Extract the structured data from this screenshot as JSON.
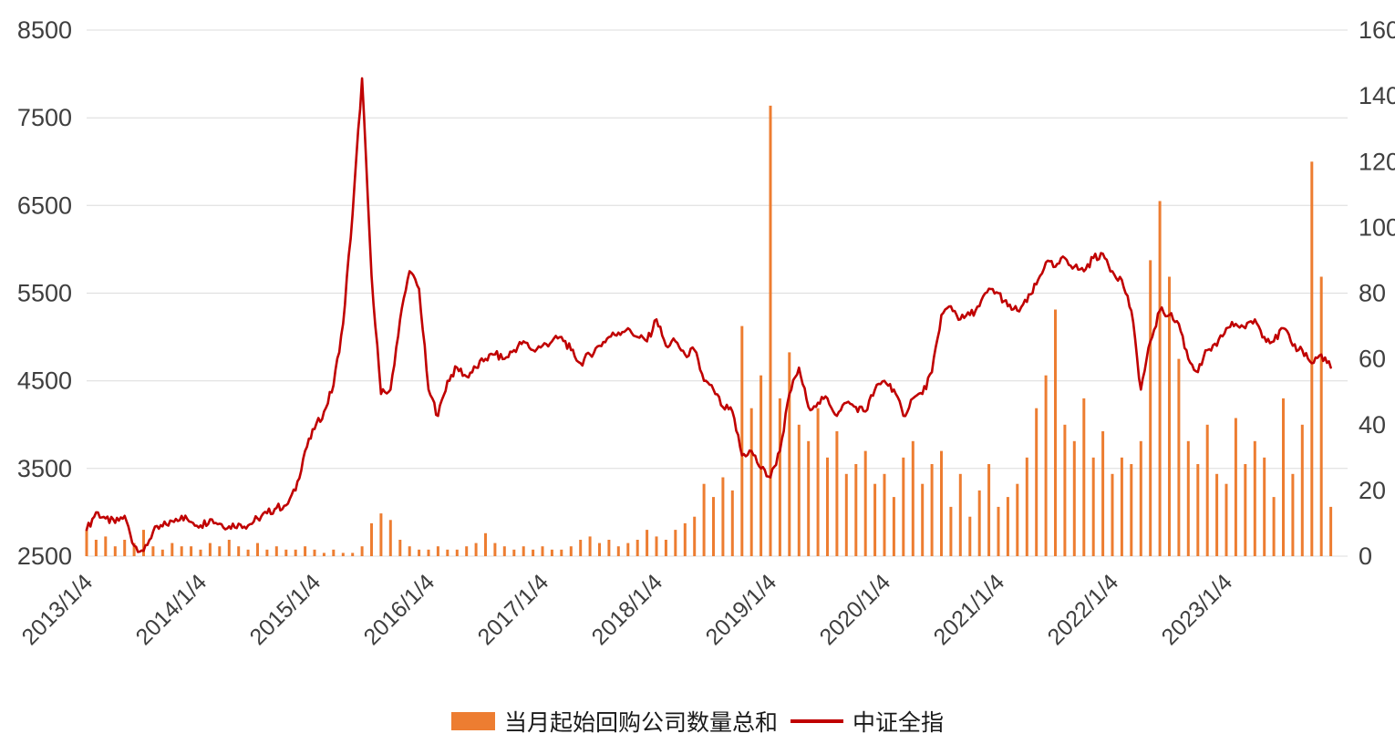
{
  "chart_data": {
    "type": "combo",
    "title": "",
    "x_tick_labels": [
      "2013/1/4",
      "2014/1/4",
      "2015/1/4",
      "2016/1/4",
      "2017/1/4",
      "2018/1/4",
      "2019/1/4",
      "2020/1/4",
      "2021/1/4",
      "2022/1/4",
      "2023/1/4"
    ],
    "months_per_tick": 12,
    "left_axis": {
      "label": "",
      "min": 2500,
      "max": 8500,
      "ticks": [
        2500,
        3500,
        4500,
        5500,
        6500,
        7500,
        8500
      ]
    },
    "right_axis": {
      "label": "",
      "min": 0,
      "max": 160,
      "ticks": [
        0,
        20,
        40,
        60,
        80,
        100,
        120,
        140,
        160
      ]
    },
    "grid_color": "#DCDCDC",
    "text_color": "#3F3F3F",
    "series": [
      {
        "name": "当月起始回购公司数量总和",
        "type": "bar",
        "axis": "right",
        "color": "#ED7D31",
        "values": [
          8,
          5,
          6,
          3,
          5,
          4,
          8,
          3,
          2,
          4,
          3,
          3,
          2,
          4,
          3,
          5,
          3,
          2,
          4,
          2,
          3,
          2,
          2,
          3,
          2,
          1,
          2,
          1,
          1,
          3,
          10,
          13,
          11,
          5,
          3,
          2,
          2,
          3,
          2,
          2,
          3,
          4,
          7,
          4,
          3,
          2,
          3,
          2,
          3,
          2,
          2,
          3,
          5,
          6,
          4,
          5,
          3,
          4,
          5,
          8,
          6,
          5,
          8,
          10,
          12,
          22,
          18,
          24,
          20,
          70,
          45,
          55,
          137,
          48,
          62,
          40,
          35,
          45,
          30,
          38,
          25,
          28,
          32,
          22,
          25,
          18,
          30,
          35,
          22,
          28,
          32,
          15,
          25,
          12,
          20,
          28,
          15,
          18,
          22,
          30,
          45,
          55,
          75,
          40,
          35,
          48,
          30,
          38,
          25,
          30,
          28,
          35,
          90,
          108,
          85,
          60,
          35,
          28,
          40,
          25,
          22,
          42,
          28,
          35,
          30,
          18,
          48,
          25,
          40,
          120,
          85,
          15
        ]
      },
      {
        "name": "中证全指",
        "type": "line",
        "axis": "left",
        "color": "#C00000",
        "values": [
          2800,
          3000,
          2930,
          2880,
          2960,
          2620,
          2560,
          2780,
          2840,
          2900,
          2960,
          2890,
          2850,
          2920,
          2870,
          2840,
          2870,
          2850,
          2930,
          2990,
          3050,
          3080,
          3250,
          3700,
          3950,
          4150,
          4450,
          5150,
          6400,
          7950,
          5700,
          4350,
          4400,
          5200,
          5750,
          5550,
          4400,
          4100,
          4500,
          4650,
          4550,
          4650,
          4750,
          4800,
          4750,
          4850,
          4950,
          4850,
          4900,
          4950,
          5000,
          4850,
          4700,
          4800,
          4900,
          5000,
          5050,
          5100,
          5000,
          4950,
          5200,
          4900,
          4950,
          4800,
          4850,
          4500,
          4400,
          4200,
          4150,
          3650,
          3700,
          3500,
          3400,
          3700,
          4350,
          4650,
          4200,
          4250,
          4300,
          4100,
          4250,
          4200,
          4150,
          4400,
          4500,
          4400,
          4100,
          4300,
          4350,
          4600,
          5250,
          5350,
          5200,
          5250,
          5350,
          5550,
          5500,
          5350,
          5300,
          5400,
          5600,
          5850,
          5800,
          5900,
          5800,
          5750,
          5900,
          5950,
          5750,
          5650,
          5300,
          4400,
          4950,
          5300,
          5250,
          5150,
          4750,
          4600,
          4850,
          4900,
          5100,
          5150,
          5100,
          5200,
          5000,
          4950,
          5100,
          4900,
          4850,
          4700,
          4800,
          4650
        ]
      }
    ],
    "legend_position": "bottom"
  }
}
